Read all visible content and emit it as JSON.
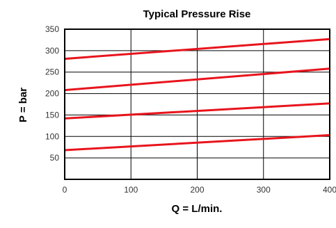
{
  "chart_data": {
    "type": "line",
    "title": "Typical Pressure Rise",
    "xlabel": "Q = L/min.",
    "ylabel": "P = bar",
    "xlim": [
      0,
      400
    ],
    "ylim": [
      0,
      350
    ],
    "xticks": [
      0,
      100,
      200,
      300,
      400
    ],
    "yticks": [
      50,
      100,
      150,
      200,
      250,
      300,
      350
    ],
    "grid": true,
    "legend": "none",
    "colors": {
      "series": "#e8141c",
      "grid": "#000000",
      "frame": "#000000"
    },
    "series": [
      {
        "x": [
          0,
          400
        ],
        "y": [
          68,
          103
        ]
      },
      {
        "x": [
          0,
          400
        ],
        "y": [
          142,
          177
        ]
      },
      {
        "x": [
          0,
          400
        ],
        "y": [
          208,
          258
        ]
      },
      {
        "x": [
          0,
          400
        ],
        "y": [
          281,
          327
        ]
      }
    ]
  }
}
